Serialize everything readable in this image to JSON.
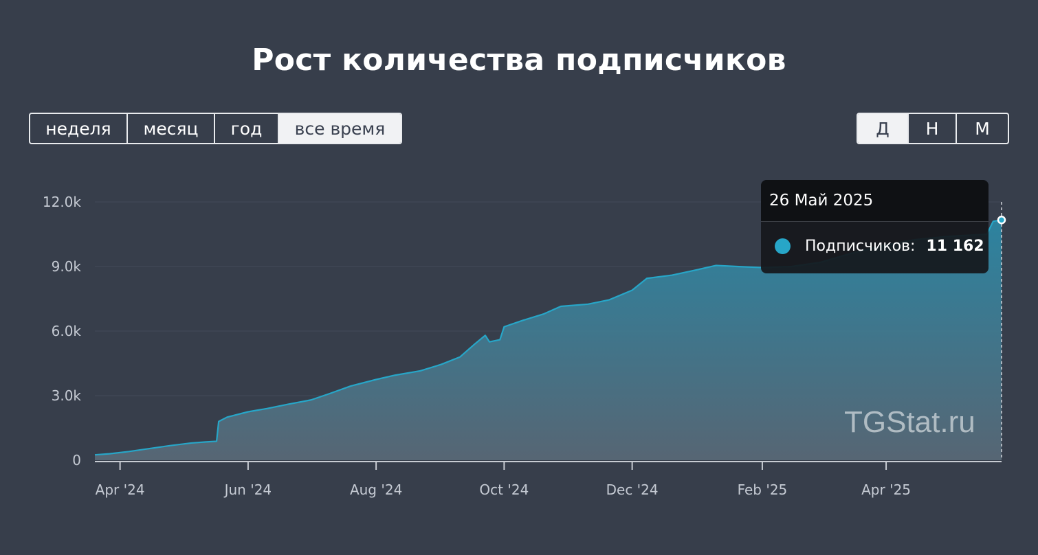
{
  "title": "Рост количества подписчиков",
  "period_buttons": [
    "неделя",
    "месяц",
    "год",
    "все время"
  ],
  "period_active": "все время",
  "granularity_buttons": [
    "Д",
    "Н",
    "М"
  ],
  "granularity_active": "Д",
  "tooltip": {
    "date": "26 Май 2025",
    "label": "Подписчиков:",
    "value": "11 162",
    "color": "#27a6c8"
  },
  "watermark": "TGStat.ru",
  "colors": {
    "background": "#373e4b",
    "line": "#27a6c8",
    "grid": "#434b59",
    "axis_text": "#c5cad3"
  },
  "chart_data": {
    "type": "area",
    "x_ticks": [
      "Apr '24",
      "Jun '24",
      "Aug '24",
      "Oct '24",
      "Dec '24",
      "Feb '25",
      "Apr '25"
    ],
    "y_ticks": [
      "0",
      "3.0k",
      "6.0k",
      "9.0k",
      "12.0k"
    ],
    "ylim": [
      0,
      12000
    ],
    "xlim": [
      "2024-03-20",
      "2025-05-26"
    ],
    "grid": true,
    "series": [
      {
        "values": [
          [
            "2024-03-20",
            250
          ],
          [
            "2024-03-27",
            300
          ],
          [
            "2024-04-05",
            400
          ],
          [
            "2024-04-15",
            540
          ],
          [
            "2024-04-25",
            680
          ],
          [
            "2024-05-05",
            800
          ],
          [
            "2024-05-12",
            850
          ],
          [
            "2024-05-17",
            880
          ],
          [
            "2024-05-18",
            1800
          ],
          [
            "2024-05-22",
            2000
          ],
          [
            "2024-06-01",
            2250
          ],
          [
            "2024-06-10",
            2400
          ],
          [
            "2024-06-20",
            2600
          ],
          [
            "2024-07-01",
            2800
          ],
          [
            "2024-07-10",
            3100
          ],
          [
            "2024-07-20",
            3450
          ],
          [
            "2024-08-01",
            3750
          ],
          [
            "2024-08-10",
            3950
          ],
          [
            "2024-08-22",
            4150
          ],
          [
            "2024-09-01",
            4450
          ],
          [
            "2024-09-10",
            4800
          ],
          [
            "2024-09-17",
            5400
          ],
          [
            "2024-09-22",
            5800
          ],
          [
            "2024-09-24",
            5500
          ],
          [
            "2024-09-29",
            5600
          ],
          [
            "2024-10-01",
            6200
          ],
          [
            "2024-10-10",
            6500
          ],
          [
            "2024-10-20",
            6800
          ],
          [
            "2024-10-28",
            7150
          ],
          [
            "2024-11-10",
            7250
          ],
          [
            "2024-11-20",
            7450
          ],
          [
            "2024-12-01",
            7900
          ],
          [
            "2024-12-08",
            8450
          ],
          [
            "2024-12-20",
            8600
          ],
          [
            "2025-01-01",
            8850
          ],
          [
            "2025-01-10",
            9050
          ],
          [
            "2025-01-20",
            9000
          ],
          [
            "2025-02-01",
            8950
          ],
          [
            "2025-02-15",
            9000
          ],
          [
            "2025-03-01",
            9200
          ],
          [
            "2025-03-15",
            9600
          ],
          [
            "2025-04-01",
            10000
          ],
          [
            "2025-04-15",
            10250
          ],
          [
            "2025-05-01",
            10400
          ],
          [
            "2025-05-19",
            10500
          ],
          [
            "2025-05-22",
            11100
          ],
          [
            "2025-05-26",
            11162
          ]
        ]
      }
    ]
  }
}
